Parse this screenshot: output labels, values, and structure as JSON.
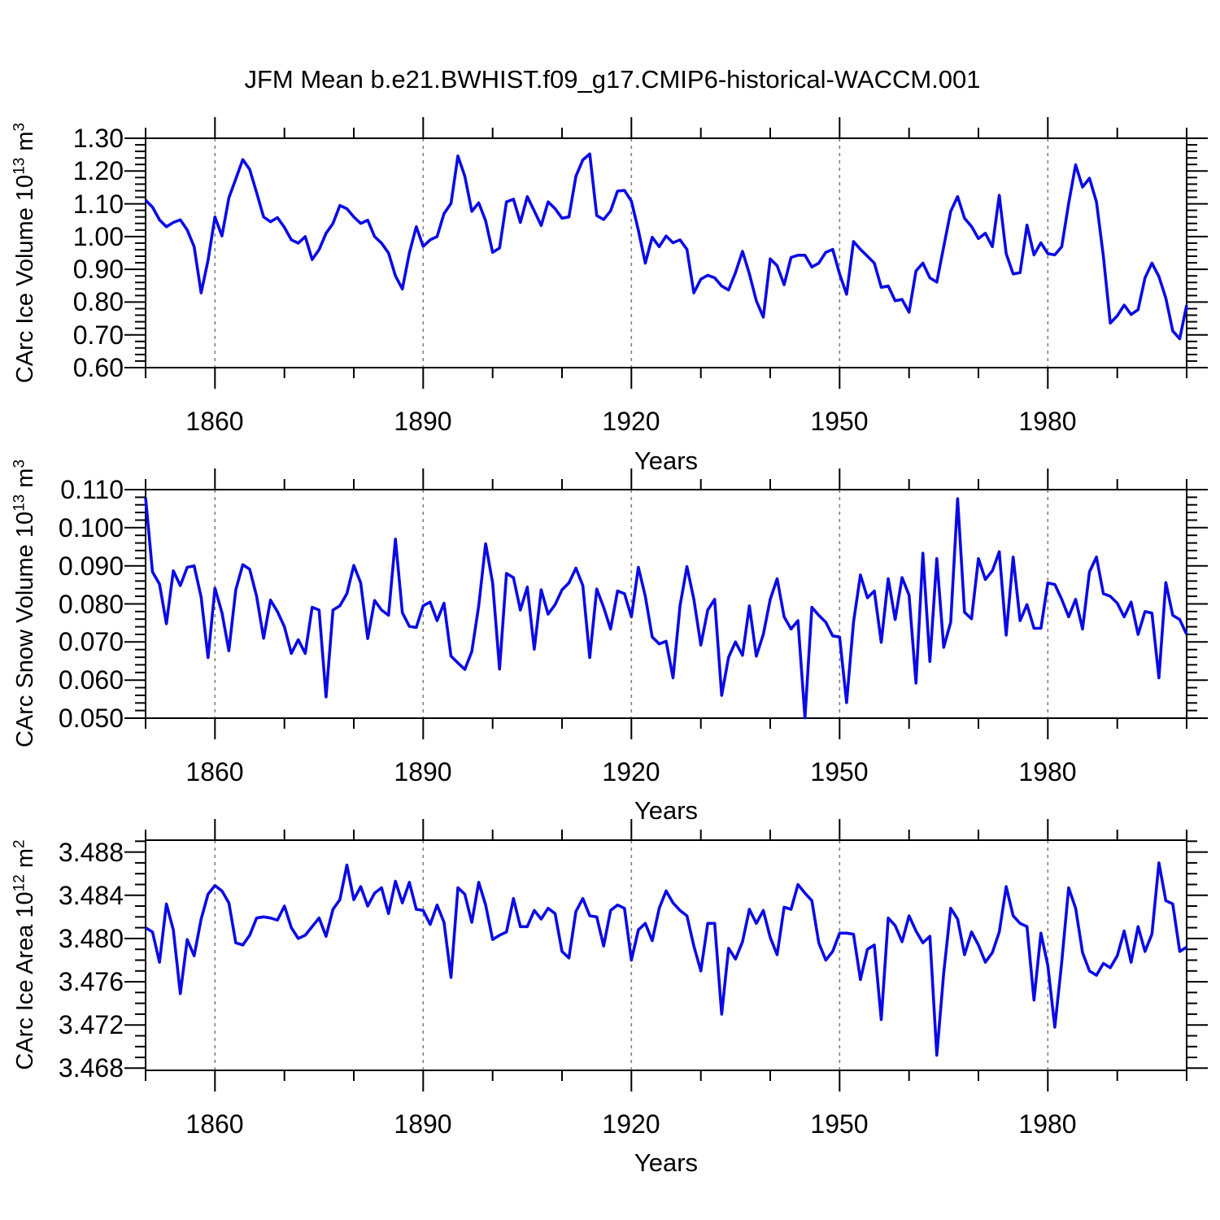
{
  "title": "JFM Mean b.e21.BWHIST.f09_g17.CMIP6-historical-WACCM.001",
  "style": {
    "line_color": "#0a0ae6",
    "grid_color": "#808080",
    "frame_color": "#000000"
  },
  "chart_data": [
    {
      "type": "line",
      "name": "carc-ice-volume",
      "xlabel": "Years",
      "ylabel": {
        "base1": "CArc Ice Volume 10",
        "sup1": "13",
        "base2": " m",
        "sup2": "3"
      },
      "xlim": [
        1850,
        2000
      ],
      "x_major_ticks": [
        1860,
        1890,
        1920,
        1950,
        1980
      ],
      "x_tick_labels": [
        "1860",
        "1890",
        "1920",
        "1950",
        "1980"
      ],
      "x_minor_step": 10,
      "ylim": [
        0.6,
        1.3
      ],
      "y_major_ticks": [
        1.3,
        1.2,
        1.1,
        1.0,
        0.9,
        0.8,
        0.7,
        0.6
      ],
      "y_tick_labels": [
        "1.30",
        "1.20",
        "1.10",
        "1.00",
        "0.90",
        "0.80",
        "0.70",
        "0.60"
      ],
      "y_minor_step": 0.02,
      "grid": "vertical-dashed",
      "x0": 1850,
      "dx": 1,
      "values": [
        1.111,
        1.09,
        1.051,
        1.03,
        1.043,
        1.051,
        1.02,
        0.969,
        0.828,
        0.928,
        1.06,
        1.002,
        1.118,
        1.176,
        1.235,
        1.205,
        1.134,
        1.06,
        1.045,
        1.058,
        1.028,
        0.99,
        0.98,
        1.0,
        0.93,
        0.96,
        1.01,
        1.04,
        1.095,
        1.085,
        1.06,
        1.04,
        1.05,
        1.0,
        0.98,
        0.95,
        0.88,
        0.84,
        0.95,
        1.03,
        0.97,
        0.99,
        1.0,
        1.07,
        1.101,
        1.246,
        1.184,
        1.077,
        1.103,
        1.048,
        0.952,
        0.965,
        1.106,
        1.114,
        1.043,
        1.122,
        1.078,
        1.034,
        1.106,
        1.085,
        1.056,
        1.06,
        1.184,
        1.234,
        1.252,
        1.064,
        1.052,
        1.078,
        1.139,
        1.141,
        1.108,
        1.019,
        0.919,
        0.998,
        0.969,
        1.002,
        0.981,
        0.99,
        0.961,
        0.828,
        0.87,
        0.882,
        0.874,
        0.849,
        0.837,
        0.89,
        0.955,
        0.886,
        0.804,
        0.754,
        0.932,
        0.911,
        0.853,
        0.936,
        0.943,
        0.943,
        0.907,
        0.919,
        0.952,
        0.961,
        0.886,
        0.824,
        0.985,
        0.961,
        0.94,
        0.919,
        0.845,
        0.849,
        0.804,
        0.808,
        0.769,
        0.895,
        0.919,
        0.874,
        0.861,
        0.969,
        1.077,
        1.122,
        1.056,
        1.031,
        0.994,
        1.01,
        0.969,
        1.126,
        0.948,
        0.886,
        0.89,
        1.035,
        0.944,
        0.981,
        0.948,
        0.944,
        0.969,
        1.101,
        1.219,
        1.151,
        1.178,
        1.106,
        0.94,
        0.736,
        0.758,
        0.791,
        0.762,
        0.777,
        0.874,
        0.919,
        0.878,
        0.812,
        0.712,
        0.688,
        0.791
      ]
    },
    {
      "type": "line",
      "name": "carc-snow-volume",
      "xlabel": "Years",
      "ylabel": {
        "base1": "CArc Snow Volume 10",
        "sup1": "13",
        "base2": " m",
        "sup2": "3"
      },
      "xlim": [
        1850,
        2000
      ],
      "x_major_ticks": [
        1860,
        1890,
        1920,
        1950,
        1980
      ],
      "x_tick_labels": [
        "1860",
        "1890",
        "1920",
        "1950",
        "1980"
      ],
      "x_minor_step": 10,
      "ylim": [
        0.05,
        0.11
      ],
      "y_major_ticks": [
        0.11,
        0.1,
        0.09,
        0.08,
        0.07,
        0.06,
        0.05
      ],
      "y_tick_labels": [
        "0.110",
        "0.100",
        "0.090",
        "0.080",
        "0.070",
        "0.060",
        "0.050"
      ],
      "y_minor_step": 0.002,
      "grid": "vertical-dashed",
      "x0": 1850,
      "dx": 1,
      "values": [
        0.1079,
        0.0884,
        0.0852,
        0.0748,
        0.0887,
        0.0848,
        0.0896,
        0.09,
        0.0818,
        0.0659,
        0.0841,
        0.0777,
        0.0677,
        0.0837,
        0.0903,
        0.0891,
        0.082,
        0.071,
        0.081,
        0.078,
        0.074,
        0.067,
        0.0706,
        0.067,
        0.0791,
        0.0784,
        0.0556,
        0.0784,
        0.0795,
        0.0827,
        0.0901,
        0.0855,
        0.0709,
        0.0809,
        0.0784,
        0.077,
        0.097,
        0.0777,
        0.0741,
        0.0738,
        0.0795,
        0.0805,
        0.0756,
        0.0802,
        0.0663,
        0.0645,
        0.0628,
        0.0675,
        0.0795,
        0.0958,
        0.0855,
        0.0629,
        0.088,
        0.0869,
        0.0784,
        0.0844,
        0.0681,
        0.0837,
        0.0773,
        0.0798,
        0.0837,
        0.0855,
        0.0894,
        0.0848,
        0.0659,
        0.0839,
        0.0791,
        0.0734,
        0.0834,
        0.0827,
        0.0766,
        0.0896,
        0.082,
        0.0713,
        0.0695,
        0.0702,
        0.0606,
        0.0795,
        0.0898,
        0.0812,
        0.0692,
        0.0784,
        0.0812,
        0.056,
        0.066,
        0.07,
        0.0665,
        0.0795,
        0.0663,
        0.072,
        0.0812,
        0.0866,
        0.0766,
        0.0734,
        0.0756,
        0.0501,
        0.0791,
        0.077,
        0.0752,
        0.0716,
        0.0713,
        0.0541,
        0.0752,
        0.0876,
        0.0816,
        0.0834,
        0.0699,
        0.0866,
        0.0759,
        0.0869,
        0.0823,
        0.0592,
        0.0933,
        0.0649,
        0.0919,
        0.0686,
        0.0752,
        0.1076,
        0.0778,
        0.0761,
        0.0919,
        0.0864,
        0.0887,
        0.0937,
        0.0718,
        0.0923,
        0.0756,
        0.0798,
        0.0736,
        0.0736,
        0.0855,
        0.0851,
        0.0812,
        0.0766,
        0.0812,
        0.0734,
        0.0884,
        0.0923,
        0.0827,
        0.082,
        0.0802,
        0.0766,
        0.0805,
        0.072,
        0.078,
        0.0776,
        0.0606,
        0.0856,
        0.077,
        0.0759,
        0.072
      ]
    },
    {
      "type": "line",
      "name": "carc-ice-area",
      "xlabel": "Years",
      "ylabel": {
        "base1": "CArc Ice Area 10",
        "sup1": "12",
        "base2": " m",
        "sup2": "2"
      },
      "xlim": [
        1850,
        2000
      ],
      "x_major_ticks": [
        1860,
        1890,
        1920,
        1950,
        1980
      ],
      "x_tick_labels": [
        "1860",
        "1890",
        "1920",
        "1950",
        "1980"
      ],
      "x_minor_step": 10,
      "ylim": [
        3.4678,
        3.4891
      ],
      "y_major_ticks": [
        3.488,
        3.484,
        3.48,
        3.476,
        3.472,
        3.468
      ],
      "y_tick_labels": [
        "3.488",
        "3.484",
        "3.480",
        "3.476",
        "3.472",
        "3.468"
      ],
      "y_minor_step": 0.001,
      "grid": "vertical-dashed",
      "x0": 1850,
      "dx": 1,
      "values": [
        3.481,
        3.4806,
        3.4778,
        3.4832,
        3.4808,
        3.4749,
        3.4799,
        3.4784,
        3.4818,
        3.4841,
        3.4849,
        3.4844,
        3.4833,
        3.4796,
        3.4794,
        3.4803,
        3.4819,
        3.482,
        3.4819,
        3.4817,
        3.483,
        3.481,
        3.48,
        3.4803,
        3.4811,
        3.4819,
        3.4802,
        3.4827,
        3.4836,
        3.4868,
        3.4836,
        3.4848,
        3.483,
        3.4842,
        3.4847,
        3.4823,
        3.4853,
        3.4833,
        3.4852,
        3.4827,
        3.4826,
        3.4813,
        3.4831,
        3.4815,
        3.4764,
        3.4847,
        3.4841,
        3.4815,
        3.4852,
        3.4831,
        3.4799,
        3.4803,
        3.4806,
        3.4837,
        3.4811,
        3.4811,
        3.4826,
        3.4818,
        3.4828,
        3.4823,
        3.4788,
        3.4782,
        3.4825,
        3.4837,
        3.4821,
        3.482,
        3.4793,
        3.4826,
        3.4831,
        3.4828,
        3.478,
        3.4808,
        3.4814,
        3.4798,
        3.4828,
        3.4844,
        3.4833,
        3.4826,
        3.4821,
        3.4793,
        3.477,
        3.4814,
        3.4814,
        3.473,
        3.4791,
        3.4781,
        3.4797,
        3.4827,
        3.4814,
        3.4826,
        3.4801,
        3.4785,
        3.4829,
        3.4827,
        3.485,
        3.4842,
        3.4835,
        3.4796,
        3.478,
        3.4788,
        3.4805,
        3.4805,
        3.4804,
        3.4762,
        3.479,
        3.4794,
        3.4725,
        3.4819,
        3.4812,
        3.4797,
        3.4821,
        3.4807,
        3.4796,
        3.4802,
        3.4692,
        3.4768,
        3.4828,
        3.4818,
        3.4785,
        3.4806,
        3.4794,
        3.4778,
        3.4787,
        3.4806,
        3.4848,
        3.4821,
        3.4814,
        3.4811,
        3.4743,
        3.4805,
        3.4775,
        3.4718,
        3.4778,
        3.4847,
        3.4828,
        3.4787,
        3.477,
        3.4766,
        3.4777,
        3.4773,
        3.4784,
        3.4807,
        3.4778,
        3.4811,
        3.4788,
        3.4804,
        3.487,
        3.4835,
        3.4832,
        3.4788,
        3.4792
      ]
    }
  ]
}
